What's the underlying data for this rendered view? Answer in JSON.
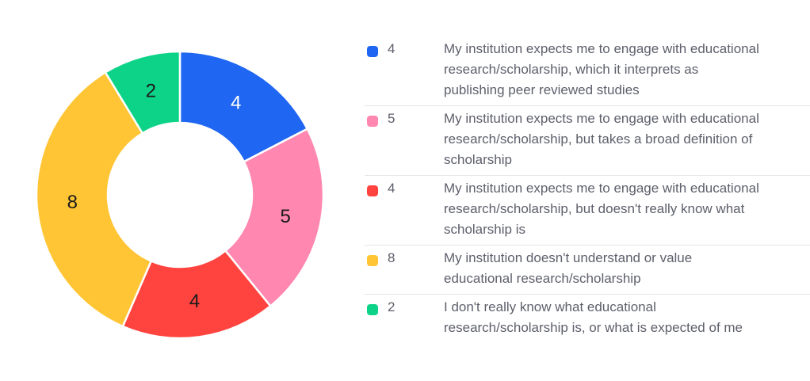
{
  "chart_data": {
    "type": "pie",
    "variant": "donut",
    "start_angle": "12 o'clock",
    "direction": "clockwise",
    "slices": [
      {
        "label": "My institution expects me to engage with educational research/scholarship, which it interprets as publishing peer reviewed studies",
        "value": 4,
        "display": "4",
        "color": "#1f66f2",
        "label_color": "#ffffff"
      },
      {
        "label": "My institution expects me to engage with educational research/scholarship, but takes a broad definition of scholarship",
        "value": 5,
        "display": "5",
        "color": "#ff87b0",
        "label_color": "#1a1a1a"
      },
      {
        "label": "My institution expects me to engage with educational research/scholarship, but doesn't really know what scholarship is",
        "value": 4,
        "display": "4",
        "color": "#ff443f",
        "label_color": "#1a1a1a"
      },
      {
        "label": "My institution doesn't understand or value educational research/scholarship",
        "value": 8,
        "display": "8",
        "color": "#ffc535",
        "label_color": "#1a1a1a"
      },
      {
        "label": "I don't really know what educational research/scholarship is, or what is expected of me",
        "value": 2,
        "display": "2",
        "color": "#0dd389",
        "label_color": "#1a1a1a"
      }
    ],
    "legend_position": "right"
  }
}
